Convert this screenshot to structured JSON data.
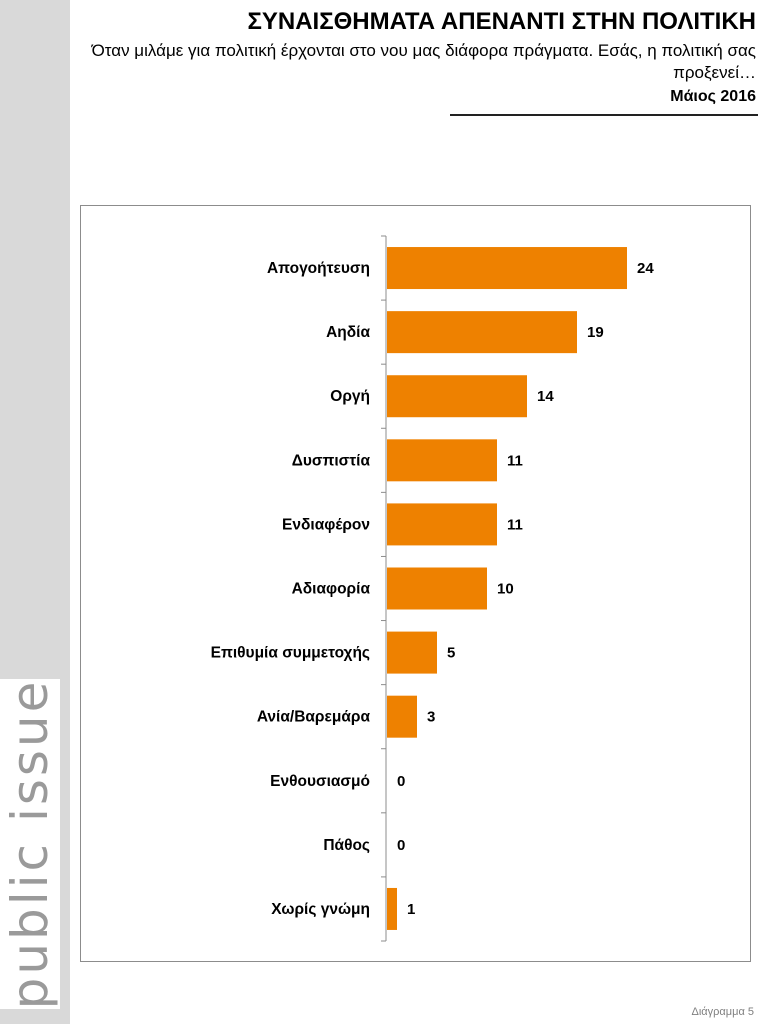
{
  "header": {
    "title": "ΣΥΝΑΙΣΘΗΜΑΤΑ ΑΠΕΝΑΝΤΙ ΣΤΗΝ ΠΟΛΙΤΙΚΗ",
    "subtitle": "Όταν μιλάμε για πολιτική έρχονται στο νου μας διάφορα πράγματα. Εσάς, η πολιτική σας προξενεί…",
    "date": "Μάιος 2016"
  },
  "branding": {
    "logo_text": "public issue"
  },
  "footer": {
    "label": "Διάγραμμα 5"
  },
  "colors": {
    "bar": "#ee8100",
    "sidebar": "#d9d9d9",
    "logo_text": "#9a9a9a"
  },
  "chart_data": {
    "type": "bar",
    "orientation": "horizontal",
    "categories": [
      "Απογοήτευση",
      "Αηδία",
      "Οργή",
      "Δυσπιστία",
      "Ενδιαφέρον",
      "Αδιαφορία",
      "Επιθυμία συμμετοχής",
      "Ανία/Βαρεμάρα",
      "Ενθουσιασμό",
      "Πάθος",
      "Χωρίς γνώμη"
    ],
    "values": [
      24,
      19,
      14,
      11,
      11,
      10,
      5,
      3,
      0,
      0,
      1
    ],
    "xlim": [
      0,
      24
    ],
    "grid": false,
    "legend": false
  }
}
